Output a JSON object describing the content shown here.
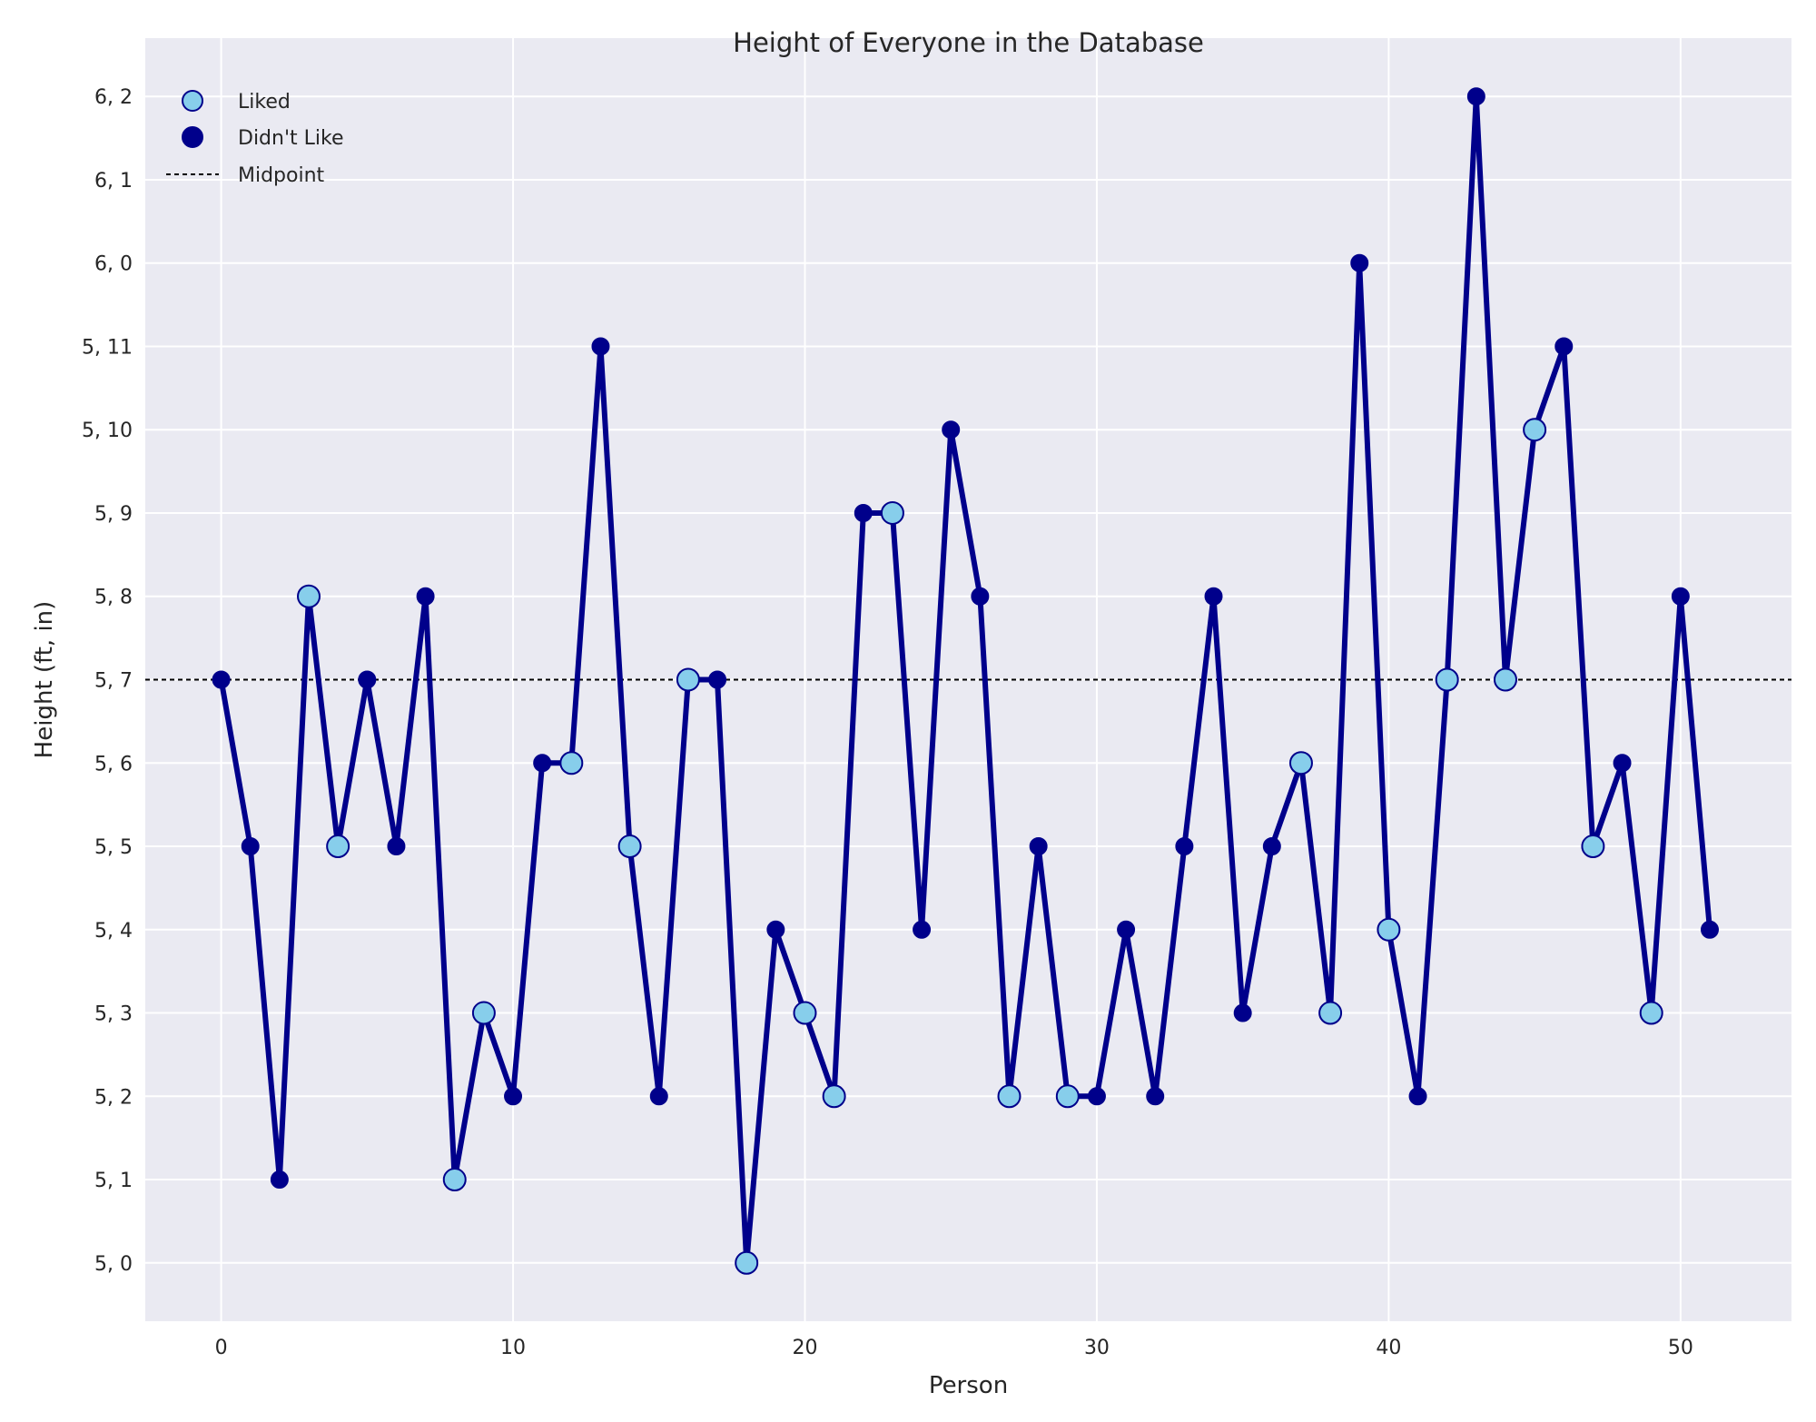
{
  "chart_data": {
    "type": "line",
    "title": "Height of Everyone in the Database",
    "xlabel": "Person",
    "ylabel": "Height (ft, in)",
    "xlim": [
      -2.6,
      53.8
    ],
    "ylim": [
      59.3,
      62.7
    ],
    "ylim_inches": [
      59.3,
      74.7
    ],
    "x_ticks": [
      0,
      10,
      20,
      30,
      40,
      50
    ],
    "y_ticks_inches": [
      60,
      61,
      62,
      63,
      64,
      65,
      66,
      67,
      68,
      69,
      70,
      71,
      72,
      73,
      74
    ],
    "y_tick_labels": [
      "5, 0",
      "5, 1",
      "5, 2",
      "5, 3",
      "5, 4",
      "5, 5",
      "5, 6",
      "5, 7",
      "5, 8",
      "5, 9",
      "5, 10",
      "5, 11",
      "6, 0",
      "6, 1",
      "6, 2"
    ],
    "heights_inches": [
      67,
      65,
      61,
      68,
      65,
      67,
      65,
      68,
      61,
      63,
      62,
      66,
      66,
      71,
      65,
      62,
      67,
      67,
      60,
      64,
      63,
      62,
      69,
      69,
      64,
      70,
      68,
      62,
      65,
      62,
      62,
      64,
      62,
      65,
      68,
      63,
      65,
      66,
      63,
      72,
      64,
      62,
      67,
      74,
      67,
      70,
      71,
      65,
      66,
      63,
      68,
      64
    ],
    "liked": [
      0,
      0,
      0,
      1,
      1,
      0,
      0,
      0,
      1,
      1,
      0,
      0,
      1,
      0,
      1,
      0,
      1,
      0,
      1,
      0,
      1,
      1,
      0,
      1,
      0,
      0,
      0,
      1,
      0,
      1,
      0,
      0,
      0,
      0,
      0,
      0,
      0,
      1,
      1,
      0,
      1,
      0,
      1,
      0,
      1,
      1,
      0,
      1,
      0,
      1,
      0,
      0
    ],
    "midpoint_inches": 67,
    "legend": {
      "position": "upper-left",
      "entries": [
        "Liked",
        "Didn't Like",
        "Midpoint"
      ]
    },
    "colors": {
      "line": "#00008b",
      "liked_fill": "#87ceeb",
      "didnt_like_fill": "#00008b",
      "midpoint": "#000000",
      "background": "#eaeaf2",
      "grid": "#ffffff"
    },
    "grid": true
  }
}
